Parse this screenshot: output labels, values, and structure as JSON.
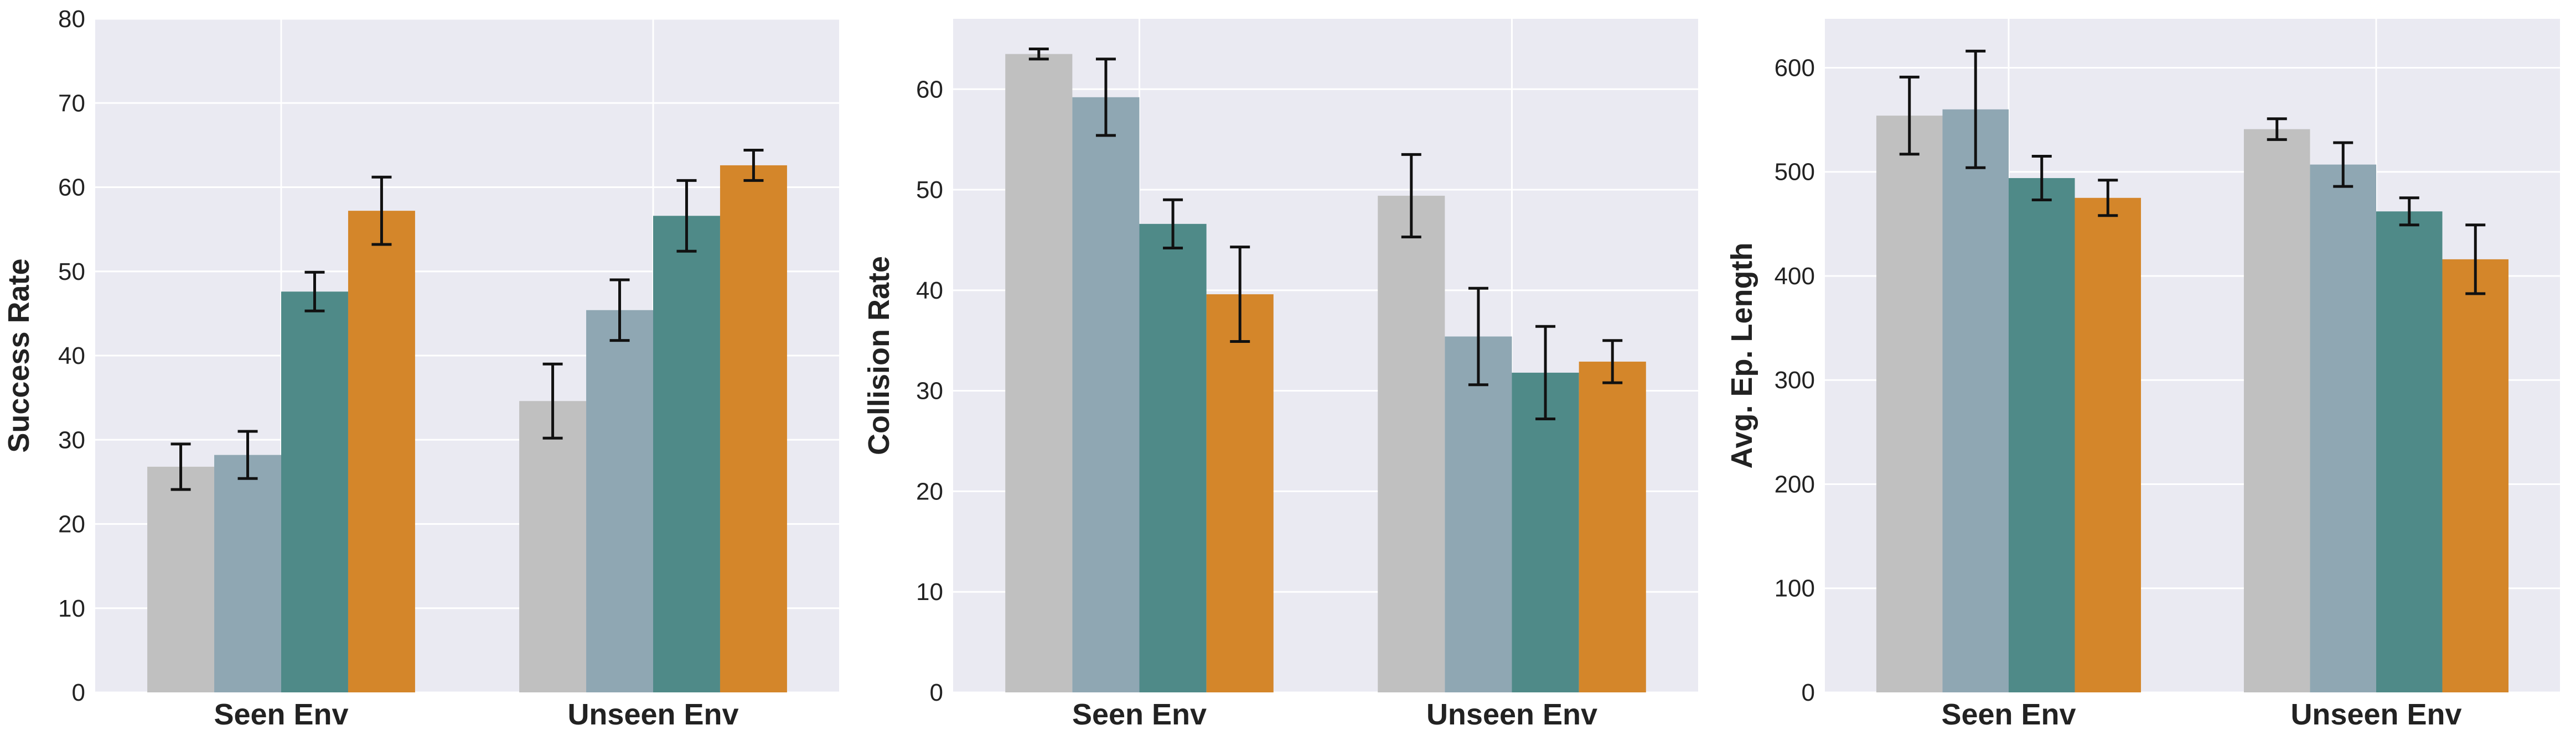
{
  "colors": {
    "plot_background": "#eaeaf2",
    "grid": "#ffffff",
    "error_bar": "#111111",
    "series": [
      "#c0c0c0",
      "#8fa7b3",
      "#4f8a88",
      "#d4862a"
    ]
  },
  "chart_data": [
    {
      "type": "bar",
      "ylabel": "Success Rate",
      "categories": [
        "Seen Env",
        "Unseen Env"
      ],
      "ylim": [
        0,
        80
      ],
      "yticks": [
        "0",
        "10",
        "20",
        "30",
        "40",
        "50",
        "60",
        "70",
        "80"
      ],
      "grid": true,
      "series": [
        {
          "values": [
            26.8,
            34.6
          ],
          "errors": [
            2.7,
            4.4
          ]
        },
        {
          "values": [
            28.2,
            45.4
          ],
          "errors": [
            2.8,
            3.6
          ]
        },
        {
          "values": [
            47.6,
            56.6
          ],
          "errors": [
            2.3,
            4.2
          ]
        },
        {
          "values": [
            57.2,
            62.6
          ],
          "errors": [
            4.0,
            1.8
          ]
        }
      ]
    },
    {
      "type": "bar",
      "ylabel": "Collision Rate",
      "categories": [
        "Seen Env",
        "Unseen Env"
      ],
      "ylim": [
        0,
        67
      ],
      "yticks": [
        "0",
        "10",
        "20",
        "30",
        "40",
        "50",
        "60"
      ],
      "grid": true,
      "series": [
        {
          "values": [
            63.5,
            49.4
          ],
          "errors": [
            0.5,
            4.1
          ]
        },
        {
          "values": [
            59.2,
            35.4
          ],
          "errors": [
            3.8,
            4.8
          ]
        },
        {
          "values": [
            46.6,
            31.8
          ],
          "errors": [
            2.4,
            4.6
          ]
        },
        {
          "values": [
            39.6,
            32.9
          ],
          "errors": [
            4.7,
            2.1
          ]
        }
      ]
    },
    {
      "type": "bar",
      "ylabel": "Avg. Ep. Length",
      "categories": [
        "Seen Env",
        "Unseen Env"
      ],
      "ylim": [
        0,
        647
      ],
      "yticks": [
        "0",
        "100",
        "200",
        "300",
        "400",
        "500",
        "600"
      ],
      "grid": true,
      "series": [
        {
          "values": [
            554,
            541
          ],
          "errors": [
            37,
            10
          ]
        },
        {
          "values": [
            560,
            507
          ],
          "errors": [
            56,
            21
          ]
        },
        {
          "values": [
            494,
            462
          ],
          "errors": [
            21,
            13
          ]
        },
        {
          "values": [
            475,
            416
          ],
          "errors": [
            17,
            33
          ]
        }
      ]
    }
  ]
}
